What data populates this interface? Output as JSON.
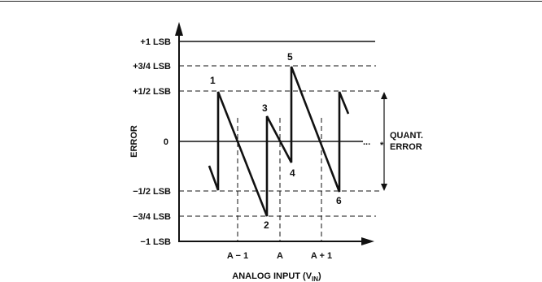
{
  "y_axis": {
    "title": "ERROR",
    "ticks": [
      {
        "key": "p1",
        "label": "+1 LSB"
      },
      {
        "key": "p34",
        "label": "+3/4 LSB"
      },
      {
        "key": "p12",
        "label": "+1/2 LSB"
      },
      {
        "key": "zero",
        "label": "0"
      },
      {
        "key": "m12",
        "label": "−1/2 LSB"
      },
      {
        "key": "m34",
        "label": "−3/4 LSB"
      },
      {
        "key": "m1",
        "label": "−1 LSB"
      }
    ]
  },
  "x_axis": {
    "title_main": "ANALOG INPUT (V",
    "title_sub": "IN",
    "title_end": ")",
    "ticks": [
      {
        "label": "A − 1"
      },
      {
        "label": "A"
      },
      {
        "label": "A + 1"
      }
    ]
  },
  "points": [
    "1",
    "2",
    "3",
    "4",
    "5",
    "6"
  ],
  "annotation": {
    "ellipsis": "...",
    "star": "*",
    "line1": "QUANT.",
    "line2": "ERROR"
  }
}
